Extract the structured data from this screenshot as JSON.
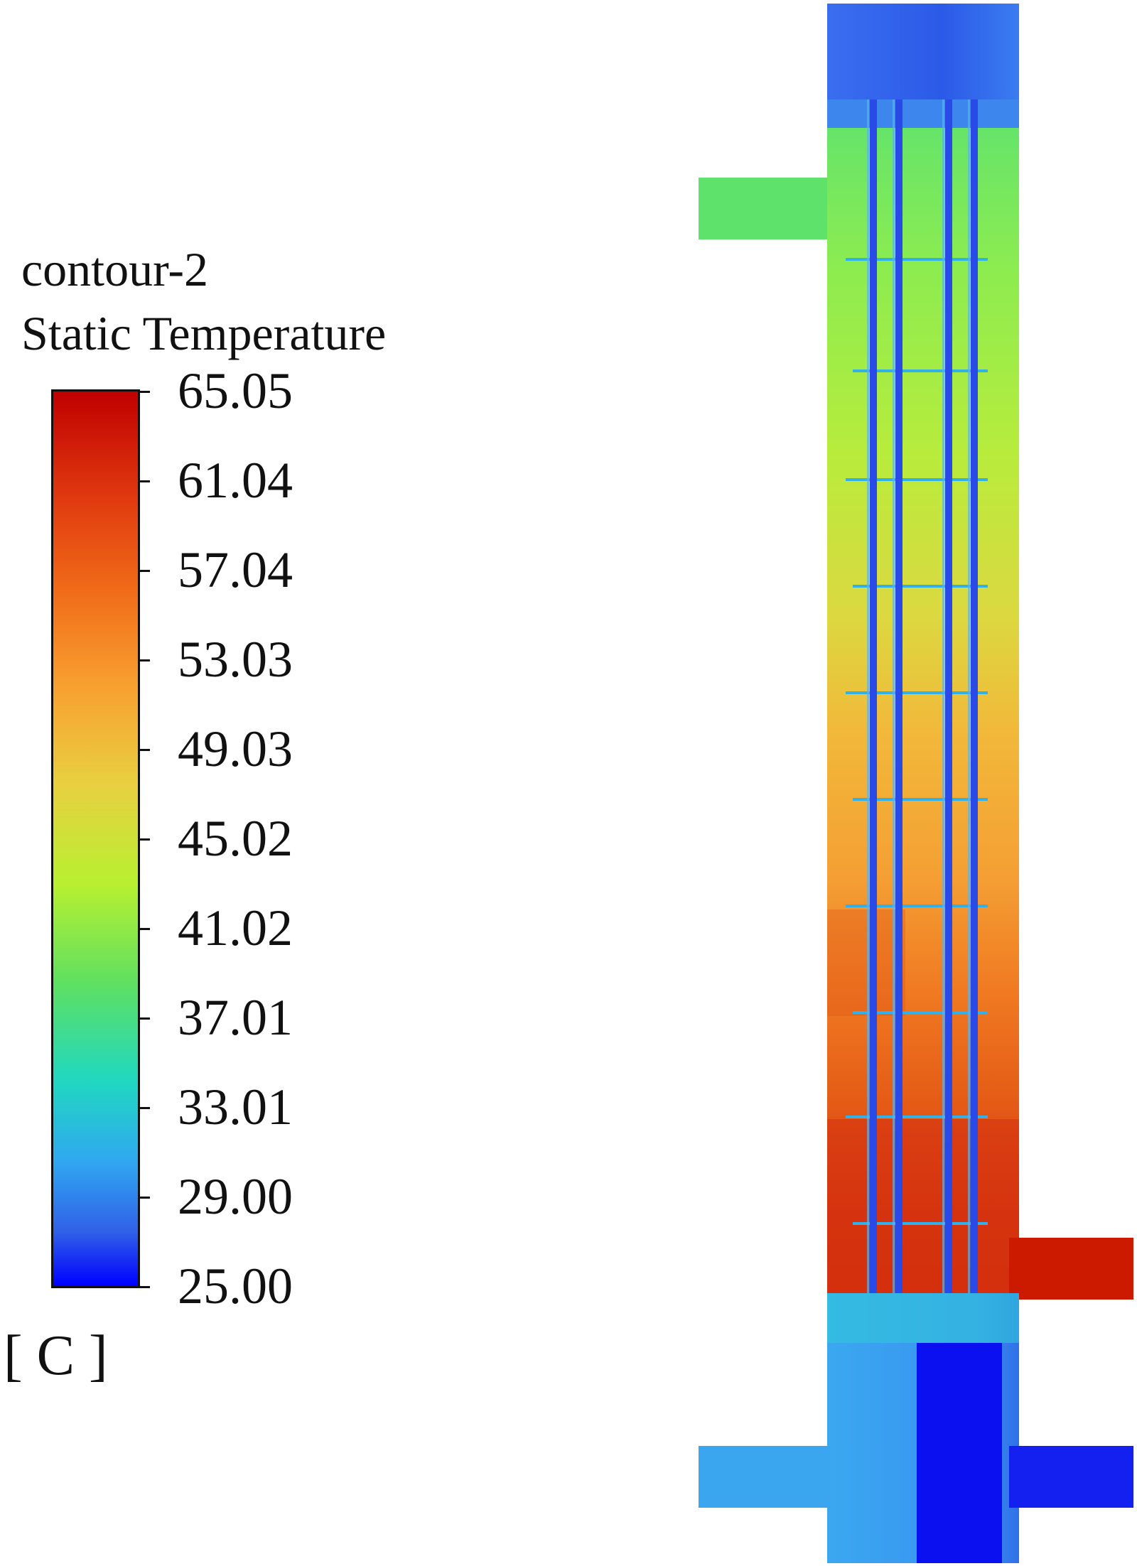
{
  "legend": {
    "title": "contour-2",
    "variable": "Static Temperature",
    "unit": "[ C ]",
    "ticks": [
      "65.05",
      "61.04",
      "57.04",
      "53.03",
      "49.03",
      "45.02",
      "41.02",
      "37.01",
      "33.01",
      "29.00",
      "25.00"
    ],
    "max": 65.05,
    "min": 25.0
  },
  "colors": {
    "max": "#c00000",
    "min": "#0000ff"
  }
}
